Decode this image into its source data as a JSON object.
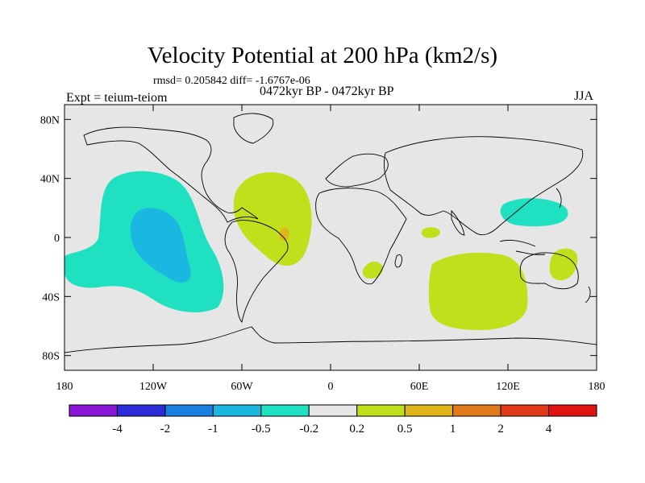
{
  "chart_data": {
    "type": "heatmap",
    "title": "Velocity Potential at 200 hPa (km2/s)",
    "stats": "rmsd= 0.205842  diff= -1.6767e-06",
    "experiment": "Expt = teium-teiom",
    "period": "0472kyr BP - 0472kyr BP",
    "season": "JJA",
    "x_ticks": [
      "180",
      "120W",
      "60W",
      "0",
      "60E",
      "120E",
      "180"
    ],
    "y_ticks": [
      "80N",
      "40N",
      "0",
      "40S",
      "80S"
    ],
    "xlim": [
      -180,
      180
    ],
    "ylim": [
      -90,
      90
    ],
    "colorbar": {
      "levels": [
        "-4",
        "-2",
        "-1",
        "-0.5",
        "-0.2",
        "0.2",
        "0.5",
        "1",
        "2",
        "4"
      ],
      "colors": [
        "#8a16d8",
        "#2b2bd8",
        "#1a7fe0",
        "#1ab8e0",
        "#1fe0c0",
        "#e6e6e6",
        "#bfe01a",
        "#e0b51a",
        "#e07a1a",
        "#e03a1a",
        "#e01212"
      ]
    },
    "regions": [
      {
        "name": "east-pacific-negative-outer",
        "level": "-0.5 to -0.2",
        "color": "#1fe0c0"
      },
      {
        "name": "east-pacific-negative-core",
        "level": "-1 to -0.5",
        "color": "#1ab8e0"
      },
      {
        "name": "tropical-atlantic-positive",
        "level": "0.2 to 0.5",
        "color": "#bfe01a"
      },
      {
        "name": "atlantic-positive-core",
        "level": "0.5 to 1",
        "color": "#e0b51a"
      },
      {
        "name": "west-pacific-negative",
        "level": "-0.5 to -0.2",
        "color": "#1fe0c0"
      },
      {
        "name": "indian-ocean-positive",
        "level": "0.2 to 0.5",
        "color": "#bfe01a"
      },
      {
        "name": "south-africa-positive",
        "level": "0.2 to 0.5",
        "color": "#bfe01a"
      },
      {
        "name": "australia-positive",
        "level": "0.2 to 0.5",
        "color": "#bfe01a"
      },
      {
        "name": "east-africa-positive",
        "level": "0.2 to 0.5",
        "color": "#bfe01a"
      }
    ]
  }
}
